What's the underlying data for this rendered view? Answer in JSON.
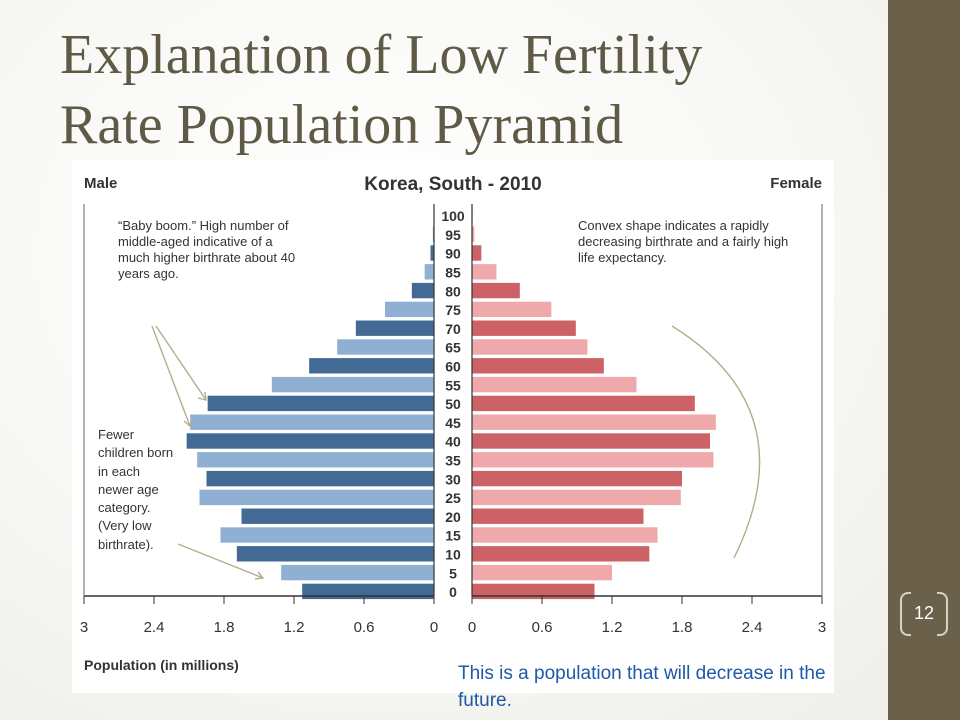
{
  "slide": {
    "title_line1": "Explanation of Low Fertility",
    "title_line2": "Rate Population Pyramid",
    "page_number": "12",
    "footer_note": "This is a population that will decrease in the future.",
    "colors": {
      "sidebar": "#6b6049",
      "title": "#5e5a46",
      "footer": "#1e58a8",
      "arrow": "#b3ae8e"
    }
  },
  "chart_data": {
    "type": "bar",
    "title": "Korea, South - 2010",
    "left_label": "Male",
    "right_label": "Female",
    "xlabel": "Population (in millions)",
    "x_ticks_left": [
      "3",
      "2.4",
      "1.8",
      "1.2",
      "0.6",
      "0"
    ],
    "x_ticks_right": [
      "0",
      "0.6",
      "1.2",
      "1.8",
      "2.4",
      "3"
    ],
    "xlim": [
      0,
      3
    ],
    "categories": [
      "100",
      "95",
      "90",
      "85",
      "80",
      "75",
      "70",
      "65",
      "60",
      "55",
      "50",
      "45",
      "40",
      "35",
      "30",
      "25",
      "20",
      "15",
      "10",
      "5",
      "0"
    ],
    "series": [
      {
        "name": "Male",
        "values": [
          0.002,
          0.01,
          0.03,
          0.08,
          0.19,
          0.42,
          0.67,
          0.83,
          1.07,
          1.39,
          1.94,
          2.09,
          2.12,
          2.03,
          1.95,
          2.01,
          1.65,
          1.83,
          1.69,
          1.31,
          1.13
        ],
        "colors": [
          "#436a95",
          "#8fb0d3"
        ]
      },
      {
        "name": "Female",
        "values": [
          0.005,
          0.02,
          0.08,
          0.21,
          0.41,
          0.68,
          0.89,
          0.99,
          1.13,
          1.41,
          1.91,
          2.09,
          2.04,
          2.07,
          1.8,
          1.79,
          1.47,
          1.59,
          1.52,
          1.2,
          1.05
        ],
        "colors": [
          "#cd6266",
          "#f0a9ab"
        ]
      }
    ],
    "annotations": [
      "“Baby boom.” High number of middle-aged indicative of a much higher birthrate about 40 years ago.",
      "Fewer children born in each newer age category. (Very low birthrate).",
      "Convex shape indicates a rapidly decreasing birthrate and a fairly high life expectancy."
    ],
    "grid": false
  }
}
